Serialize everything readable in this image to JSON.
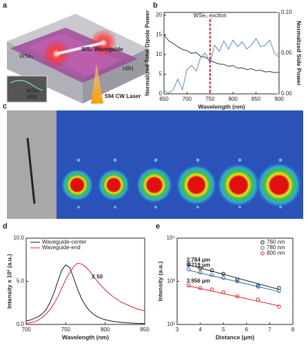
{
  "figure": {
    "panel_labels": [
      "a",
      "b",
      "c",
      "d",
      "e"
    ],
    "panel_a": {
      "labels": [
        "WS₂ Waveguide",
        "WSe₂",
        "hBN",
        "594 CW Laser"
      ],
      "inset_labels": [
        "WSe₂",
        "hBN"
      ]
    }
  },
  "chart_data": [
    {
      "type": "line",
      "annotation": {
        "x": 750,
        "text": "WSe₂ exciton",
        "color": "#d62020"
      },
      "xlabel": "Wavelength (nm)",
      "ylabel": "Normalized Total Dipole Power",
      "y2label": "Normalized Side Power",
      "x": [
        650,
        660,
        670,
        680,
        690,
        700,
        710,
        720,
        730,
        740,
        750,
        760,
        770,
        780,
        790,
        800,
        810,
        820,
        830,
        840,
        850,
        860,
        870,
        880,
        890,
        900
      ],
      "series": [
        {
          "color": "#333333",
          "values": [
            15,
            13.5,
            12.8,
            12,
            11.3,
            11,
            10.3,
            10.5,
            9.5,
            9.3,
            8.5,
            8,
            7.6,
            7.5,
            7,
            7.2,
            6.5,
            6.6,
            6.2,
            6.4,
            5.9,
            6,
            5.6,
            5.7,
            5.4,
            5.5
          ]
        },
        {
          "color": "#5a8ab8",
          "axis": "y2",
          "values": [
            0.004,
            0.001,
            0.005,
            0.018,
            0.005,
            0.03,
            0.035,
            0.028,
            0.045,
            0.05,
            0.038,
            0.06,
            0.052,
            0.065,
            0.055,
            0.066,
            0.058,
            0.064,
            0.055,
            0.06,
            0.068,
            0.058,
            0.06,
            0.066,
            0.05,
            0.045
          ]
        }
      ],
      "xlim": [
        650,
        900
      ],
      "xticks": [
        650,
        700,
        750,
        800,
        850,
        900
      ],
      "ylim": [
        0,
        20.7
      ],
      "yticks": [
        0,
        5,
        10,
        15,
        20
      ],
      "y2lim": [
        0,
        0.1
      ],
      "y2ticks": [
        {
          "value": 0,
          "label": "0.00"
        },
        {
          "value": 0.05,
          "label": "0.05"
        },
        {
          "value": 0.1,
          "label": "0.10"
        }
      ]
    },
    {
      "type": "line",
      "xlabel": "Wavelength (nm)",
      "ylabel": "Intensity x 10³ (a.u.)",
      "annotation": {
        "text": "X 50"
      },
      "legend": "upper-left",
      "x": [
        700,
        705,
        710,
        715,
        720,
        725,
        730,
        735,
        740,
        745,
        750,
        755,
        760,
        765,
        770,
        775,
        780,
        785,
        790,
        795,
        800,
        805,
        810,
        815,
        820,
        825,
        830,
        835,
        840,
        845,
        850
      ],
      "series": [
        {
          "name": "Waveguide-center",
          "color": "#111111",
          "values": [
            0.4,
            0.5,
            0.7,
            0.9,
            1.2,
            1.7,
            2.5,
            3.6,
            5.0,
            6.3,
            6.9,
            6.6,
            5.4,
            4.1,
            3.0,
            2.2,
            1.6,
            1.2,
            0.9,
            0.7,
            0.55,
            0.45,
            0.35,
            0.3,
            0.25,
            0.2,
            0.18,
            0.15,
            0.13,
            0.12,
            0.1
          ]
        },
        {
          "name": "Waveguide-end",
          "color": "#e02020",
          "values": [
            0.1,
            0.2,
            0.3,
            0.5,
            0.8,
            1.2,
            1.7,
            2.4,
            3.2,
            4.2,
            5.2,
            6.0,
            6.7,
            7.1,
            7.0,
            6.7,
            6.2,
            5.6,
            5.0,
            4.5,
            4.0,
            3.6,
            3.2,
            2.9,
            2.6,
            2.4,
            2.2,
            2.0,
            1.8,
            1.7,
            1.6
          ]
        }
      ],
      "xlim": [
        700,
        850
      ],
      "xticks": [
        700,
        750,
        800,
        850
      ],
      "ylim": [
        0,
        10
      ],
      "yticks": [
        {
          "value": 0,
          "label": "0.0"
        },
        {
          "value": 5,
          "label": "5.0"
        },
        {
          "value": 10,
          "label": "10.0"
        }
      ]
    },
    {
      "type": "scatter",
      "log_y": true,
      "xlabel": "Distance (μm)",
      "ylabel": "Intensity (a.u.)",
      "legend": "upper-right",
      "series": [
        {
          "name": "760 nm",
          "color": "#111111",
          "x": [
            3.5,
            4.0,
            4.5,
            5.0,
            5.6,
            6.5,
            7.4
          ],
          "values": [
            2500,
            2000,
            1800,
            1500,
            1100,
            800,
            700
          ],
          "fit_x": [
            3.5,
            7.4
          ],
          "fit_values": [
            2400,
            650
          ],
          "fit_label": "2.784 μm"
        },
        {
          "name": "780 nm",
          "color": "#2e6db5",
          "x": [
            3.5,
            4.0,
            4.5,
            5.0,
            5.6,
            6.5,
            7.4
          ],
          "values": [
            1900,
            1600,
            1400,
            1200,
            1000,
            750,
            600
          ],
          "fit_x": [
            3.5,
            7.4
          ],
          "fit_values": [
            1800,
            580
          ],
          "fit_label": "3.719 μm"
        },
        {
          "name": "800 nm",
          "color": "#e02020",
          "x": [
            3.5,
            4.0,
            4.5,
            5.0,
            5.6,
            6.5,
            7.4
          ],
          "values": [
            800,
            700,
            650,
            560,
            450,
            380,
            260
          ],
          "fit_x": [
            3.5,
            7.4
          ],
          "fit_values": [
            780,
            270
          ],
          "fit_label": "3.956 μm"
        }
      ],
      "xlim": [
        3,
        8
      ],
      "xticks": [
        3,
        4,
        5,
        6,
        7,
        8
      ],
      "ylim": [
        100,
        10000
      ],
      "yticks": [
        {
          "value": 100,
          "label": "10²"
        },
        {
          "value": 1000,
          "label": "10³"
        },
        {
          "value": 10000,
          "label": "10⁴"
        }
      ]
    }
  ]
}
